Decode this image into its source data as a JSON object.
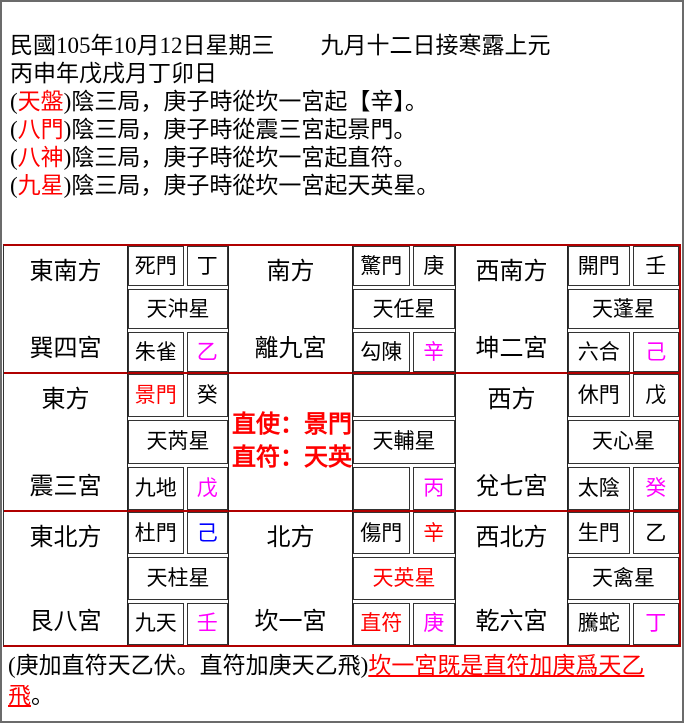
{
  "colors": {
    "red_text": "#ff0000",
    "magenta": "#ff00ff",
    "blue": "#0000ff",
    "black": "#000000",
    "grid_line_red": "#b00000",
    "cell_border": "#333333",
    "page_border": "#6b6b6b"
  },
  "header": {
    "line1": "民國105年10月12日星期三　　九月十二日接寒露上元",
    "line2": "丙申年戊戌月丁卯日",
    "paren_open": "(",
    "paren_close": ")",
    "entries": [
      {
        "tag": "天盤",
        "rest": "陰三局，庚子時從坎一宮起【辛】。"
      },
      {
        "tag": "八門",
        "rest": "陰三局，庚子時從震三宮起景門。"
      },
      {
        "tag": "八神",
        "rest": "陰三局，庚子時從坎一宮起直符。"
      },
      {
        "tag": "九星",
        "rest": "陰三局，庚子時從坎一宮起天英星。"
      }
    ]
  },
  "palaces": [
    {
      "direction": "東南方",
      "palace": "巽四宮",
      "door": "死門",
      "door_color": "#000000",
      "stem_top": "丁",
      "stem_top_color": "#000000",
      "star": "天沖星",
      "star_color": "#000000",
      "deity": "朱雀",
      "deity_color": "#000000",
      "stem_bottom": "乙",
      "stem_bottom_color": "#ff00ff"
    },
    {
      "direction": "南方",
      "palace": "離九宮",
      "door": "驚門",
      "door_color": "#000000",
      "stem_top": "庚",
      "stem_top_color": "#000000",
      "star": "天任星",
      "star_color": "#000000",
      "deity": "勾陳",
      "deity_color": "#000000",
      "stem_bottom": "辛",
      "stem_bottom_color": "#ff00ff"
    },
    {
      "direction": "西南方",
      "palace": "坤二宮",
      "door": "開門",
      "door_color": "#000000",
      "stem_top": "壬",
      "stem_top_color": "#000000",
      "star": "天蓬星",
      "star_color": "#000000",
      "deity": "六合",
      "deity_color": "#000000",
      "stem_bottom": "己",
      "stem_bottom_color": "#ff00ff"
    },
    {
      "direction": "東方",
      "palace": "震三宮",
      "door": "景門",
      "door_color": "#ff0000",
      "stem_top": "癸",
      "stem_top_color": "#000000",
      "star": "天芮星",
      "star_color": "#000000",
      "deity": "九地",
      "deity_color": "#000000",
      "stem_bottom": "戊",
      "stem_bottom_color": "#ff00ff"
    },
    {
      "direction": "",
      "palace": "",
      "center_lines": {
        "0": "直使：景門",
        "1": "直符：天英"
      },
      "door": "",
      "door_color": "#000000",
      "stem_top": "",
      "stem_top_color": "#000000",
      "star": "天輔星",
      "star_color": "#000000",
      "deity": "",
      "deity_color": "#000000",
      "stem_bottom": "丙",
      "stem_bottom_color": "#ff00ff"
    },
    {
      "direction": "西方",
      "palace": "兌七宮",
      "door": "休門",
      "door_color": "#000000",
      "stem_top": "戊",
      "stem_top_color": "#000000",
      "star": "天心星",
      "star_color": "#000000",
      "deity": "太陰",
      "deity_color": "#000000",
      "stem_bottom": "癸",
      "stem_bottom_color": "#ff00ff"
    },
    {
      "direction": "東北方",
      "palace": "艮八宮",
      "door": "杜門",
      "door_color": "#000000",
      "stem_top": "己",
      "stem_top_color": "#0000ff",
      "star": "天柱星",
      "star_color": "#000000",
      "deity": "九天",
      "deity_color": "#000000",
      "stem_bottom": "壬",
      "stem_bottom_color": "#ff00ff"
    },
    {
      "direction": "北方",
      "palace": "坎一宮",
      "door": "傷門",
      "door_color": "#000000",
      "stem_top": "辛",
      "stem_top_color": "#ff0000",
      "star": "天英星",
      "star_color": "#ff0000",
      "deity": "直符",
      "deity_color": "#ff0000",
      "stem_bottom": "庚",
      "stem_bottom_color": "#ff00ff"
    },
    {
      "direction": "西北方",
      "palace": "乾六宮",
      "door": "生門",
      "door_color": "#000000",
      "stem_top": "乙",
      "stem_top_color": "#000000",
      "star": "天禽星",
      "star_color": "#000000",
      "deity": "騰蛇",
      "deity_color": "#000000",
      "stem_bottom": "丁",
      "stem_bottom_color": "#ff00ff"
    }
  ],
  "footer": {
    "black_prefix": "(庚加直符天乙伏。直符加庚天乙飛)",
    "red_underlined": "坎一宮既是直符加庚爲天乙飛",
    "black_suffix": "。"
  }
}
